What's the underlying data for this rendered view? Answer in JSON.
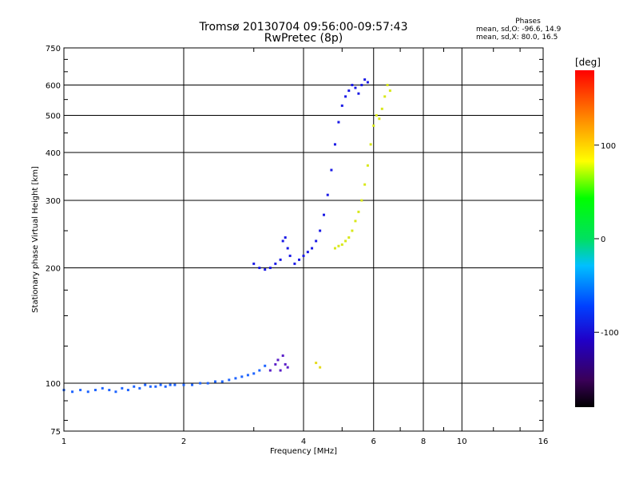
{
  "chart_data": {
    "type": "scatter",
    "title": "Tromsø 20130704 09:56:00-09:57:43",
    "subtitle": "RwPretec (8p)",
    "xlabel": "Frequency [MHz]",
    "ylabel": "Stationary phase Virtual Height [km]",
    "xscale": "log",
    "yscale": "log",
    "xlim": [
      1,
      16
    ],
    "ylim": [
      75,
      750
    ],
    "x_ticks": [
      1,
      2,
      4,
      6,
      8,
      10,
      16
    ],
    "x_tick_labels": [
      "1",
      "2",
      "4",
      "6",
      "8",
      "10",
      "16"
    ],
    "y_ticks": [
      75,
      100,
      200,
      300,
      400,
      500,
      600,
      750
    ],
    "y_tick_labels": [
      "75",
      "100",
      "200",
      "300",
      "400",
      "500",
      "600",
      "750"
    ],
    "grid": true,
    "color_by": "phase (deg)",
    "series": [
      {
        "points": [
          [
            1.0,
            96
          ],
          [
            1.05,
            95
          ],
          [
            1.1,
            96
          ],
          [
            1.15,
            95
          ],
          [
            1.2,
            96
          ],
          [
            1.25,
            97
          ],
          [
            1.3,
            96
          ],
          [
            1.35,
            95
          ],
          [
            1.4,
            97
          ],
          [
            1.45,
            96
          ],
          [
            1.5,
            98
          ],
          [
            1.55,
            97
          ],
          [
            1.6,
            99
          ],
          [
            1.65,
            98
          ],
          [
            1.7,
            98
          ],
          [
            1.75,
            99
          ],
          [
            1.8,
            98
          ],
          [
            1.85,
            99
          ],
          [
            1.9,
            99
          ],
          [
            2.0,
            99
          ],
          [
            2.1,
            99
          ],
          [
            2.2,
            100
          ],
          [
            2.3,
            100
          ],
          [
            2.4,
            101
          ],
          [
            2.5,
            101
          ],
          [
            2.6,
            102
          ],
          [
            2.7,
            103
          ],
          [
            2.8,
            104
          ],
          [
            2.9,
            105
          ],
          [
            3.0,
            106
          ],
          [
            3.1,
            108
          ],
          [
            3.2,
            111
          ]
        ]
      },
      {
        "points": [
          [
            3.3,
            108
          ],
          [
            3.4,
            112
          ],
          [
            3.45,
            115
          ],
          [
            3.5,
            108
          ],
          [
            3.55,
            118
          ],
          [
            3.6,
            112
          ],
          [
            3.65,
            110
          ]
        ]
      },
      {
        "points": [
          [
            3.0,
            205
          ],
          [
            3.1,
            200
          ],
          [
            3.2,
            198
          ],
          [
            3.3,
            200
          ],
          [
            3.4,
            205
          ],
          [
            3.5,
            210
          ],
          [
            3.55,
            235
          ],
          [
            3.6,
            240
          ],
          [
            3.65,
            225
          ],
          [
            3.7,
            215
          ],
          [
            3.8,
            205
          ],
          [
            3.9,
            210
          ],
          [
            4.0,
            215
          ],
          [
            4.1,
            220
          ],
          [
            4.2,
            225
          ],
          [
            4.3,
            235
          ],
          [
            4.4,
            250
          ],
          [
            4.5,
            275
          ],
          [
            4.6,
            310
          ],
          [
            4.7,
            360
          ],
          [
            4.8,
            420
          ],
          [
            4.9,
            480
          ],
          [
            5.0,
            530
          ],
          [
            5.1,
            560
          ],
          [
            5.2,
            580
          ],
          [
            5.3,
            600
          ],
          [
            5.4,
            590
          ],
          [
            5.5,
            570
          ],
          [
            5.6,
            600
          ],
          [
            5.7,
            620
          ],
          [
            5.8,
            610
          ]
        ]
      },
      {
        "points": [
          [
            4.8,
            225
          ],
          [
            4.9,
            228
          ],
          [
            5.0,
            230
          ],
          [
            5.1,
            235
          ],
          [
            5.2,
            240
          ],
          [
            5.3,
            250
          ],
          [
            5.4,
            265
          ],
          [
            5.5,
            280
          ],
          [
            5.6,
            300
          ],
          [
            5.7,
            330
          ],
          [
            5.8,
            370
          ],
          [
            5.9,
            420
          ],
          [
            6.0,
            470
          ],
          [
            6.1,
            500
          ],
          [
            6.2,
            490
          ],
          [
            6.3,
            520
          ],
          [
            6.4,
            560
          ],
          [
            6.5,
            600
          ],
          [
            6.6,
            580
          ]
        ]
      },
      {
        "points": [
          [
            4.3,
            113
          ],
          [
            4.4,
            110
          ]
        ]
      }
    ],
    "colorbar": {
      "label": "[deg]",
      "range": [
        -180,
        180
      ],
      "ticks": [
        100,
        0,
        -100
      ],
      "tick_labels": [
        "100",
        "0",
        "-100"
      ]
    },
    "annotations": [
      {
        "lines": [
          "Phases",
          "mean, sd,O: -96.6, 14.9",
          "mean, sd,X: 80.0, 16.5"
        ]
      }
    ]
  }
}
